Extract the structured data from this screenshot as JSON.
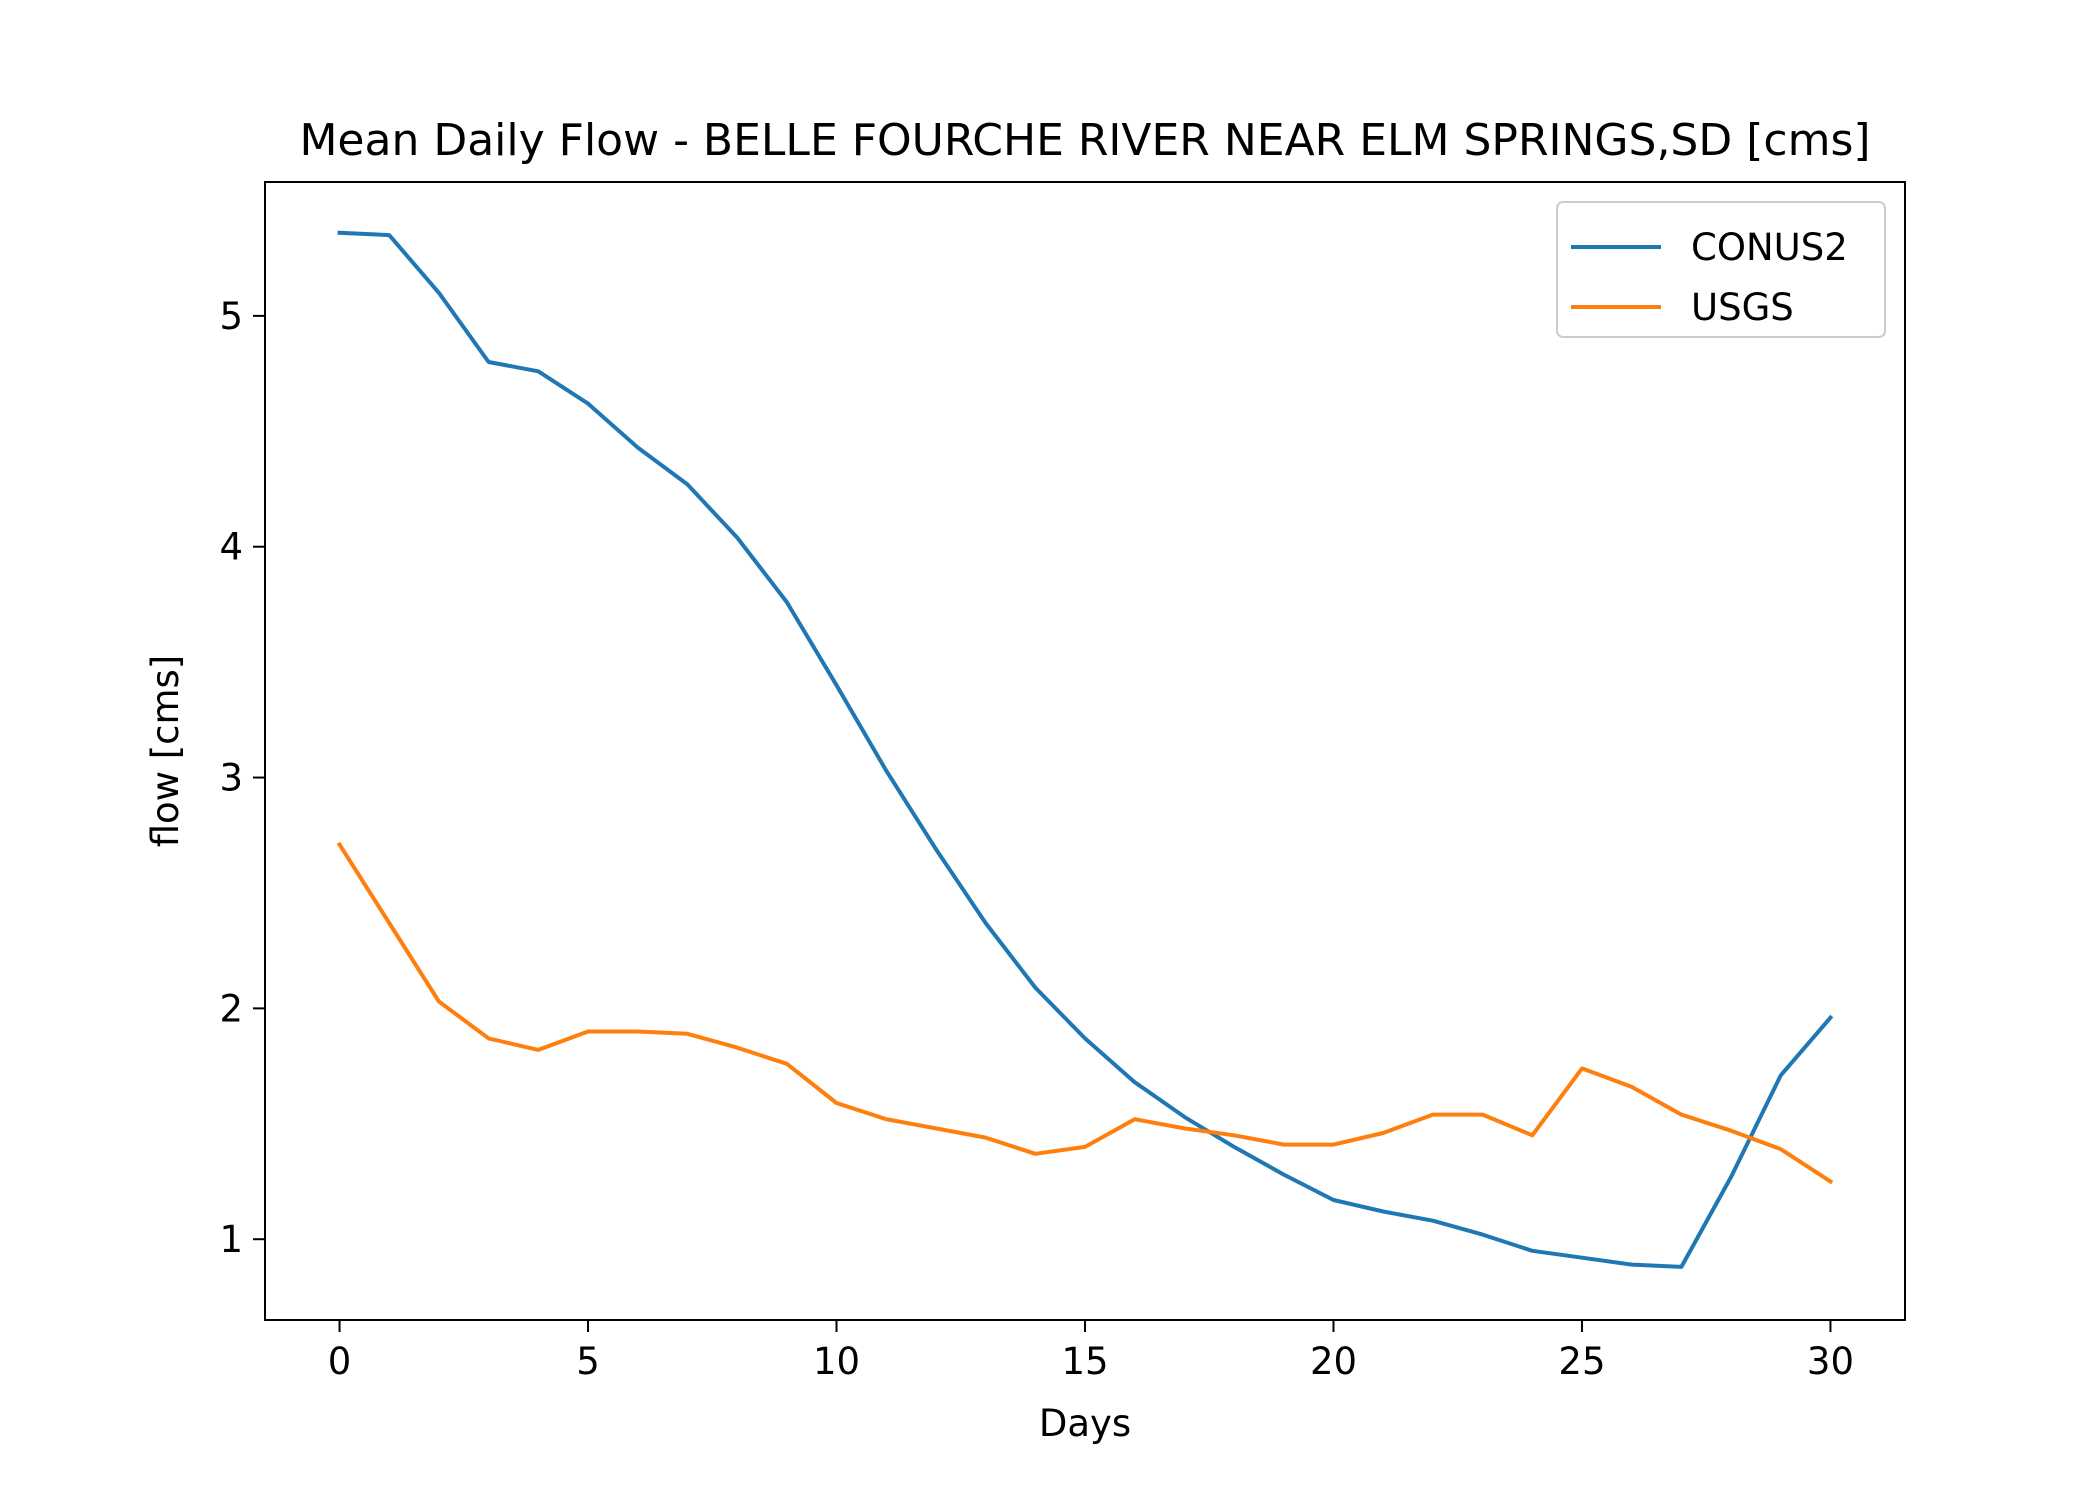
{
  "chart_data": {
    "type": "line",
    "title": "Mean Daily Flow -  BELLE FOURCHE RIVER NEAR ELM SPRINGS,SD [cms]",
    "xlabel": "Days",
    "ylabel": "flow [cms]",
    "xlim": [
      -1.5,
      31.5
    ],
    "ylim": [
      0.65,
      5.58
    ],
    "xticks": [
      0,
      5,
      10,
      15,
      20,
      25,
      30
    ],
    "yticks": [
      1,
      2,
      3,
      4,
      5
    ],
    "grid": false,
    "legend_position": "upper-right",
    "x": [
      0,
      1,
      2,
      3,
      4,
      5,
      6,
      7,
      8,
      9,
      10,
      11,
      12,
      13,
      14,
      15,
      16,
      17,
      18,
      19,
      20,
      21,
      22,
      23,
      24,
      25,
      26,
      27,
      28,
      29,
      30
    ],
    "series": [
      {
        "name": "CONUS2",
        "color": "#1f77b4",
        "values": [
          5.36,
          5.35,
          5.1,
          4.8,
          4.76,
          4.62,
          4.43,
          4.27,
          4.04,
          3.76,
          3.4,
          3.03,
          2.69,
          2.37,
          2.09,
          1.87,
          1.68,
          1.53,
          1.4,
          1.28,
          1.17,
          1.12,
          1.08,
          1.02,
          0.95,
          0.92,
          0.89,
          0.88,
          1.27,
          1.71,
          1.96
        ]
      },
      {
        "name": "USGS",
        "color": "#ff7f0e",
        "values": [
          2.71,
          2.37,
          2.03,
          1.87,
          1.82,
          1.9,
          1.9,
          1.89,
          1.83,
          1.76,
          1.59,
          1.52,
          1.48,
          1.44,
          1.37,
          1.4,
          1.52,
          1.48,
          1.45,
          1.41,
          1.41,
          1.46,
          1.54,
          1.54,
          1.45,
          1.74,
          1.66,
          1.54,
          1.47,
          1.39,
          1.25
        ]
      }
    ]
  }
}
